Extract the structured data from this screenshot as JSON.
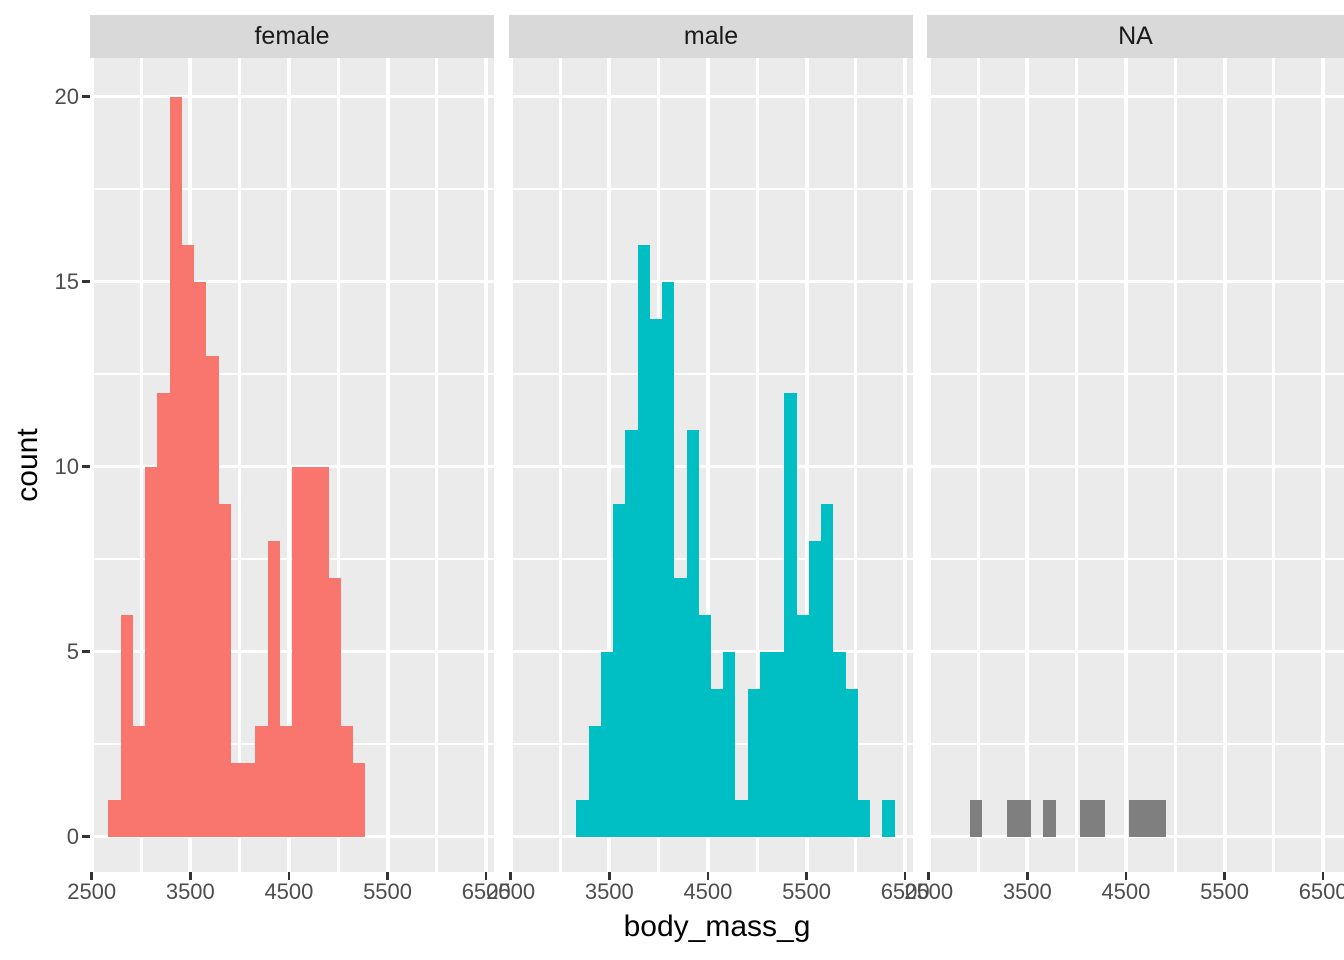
{
  "figure": {
    "x_axis_title": "body_mass_g",
    "y_axis_title": "count",
    "x_tick_labels": [
      "2500",
      "3500",
      "4500",
      "5500",
      "6500"
    ],
    "y_tick_labels": [
      "0",
      "5",
      "10",
      "15",
      "20"
    ],
    "panel_background": "#EBEBEB",
    "strip_background": "#D9D9D9",
    "grid_color": "#FFFFFF",
    "tick_mark_color": "#333333",
    "tick_label_color": "#4D4D4D",
    "axis_title_color": "#000000"
  },
  "chart_data": {
    "type": "bar",
    "subtype": "faceted-histogram",
    "title": "",
    "xlabel": "body_mass_g",
    "ylabel": "count",
    "x_ticks": [
      2500,
      3500,
      4500,
      5500,
      6500
    ],
    "y_ticks": [
      0,
      5,
      10,
      15,
      20
    ],
    "x_minor_ticks": [
      3000,
      4000,
      5000,
      6000
    ],
    "y_minor_ticks": [
      2.5,
      7.5,
      12.5,
      17.5
    ],
    "xlim": [
      2482.8,
      6579.3
    ],
    "ylim": [
      -1.05,
      21.05
    ],
    "bin_width": 124.1,
    "grid": true,
    "legend_position": "none",
    "facets": [
      {
        "label": "female",
        "fill": "#F8766D",
        "bins": [
          [
            2669.0,
            2793.1,
            1
          ],
          [
            2793.1,
            2917.2,
            6
          ],
          [
            2917.2,
            3041.4,
            3
          ],
          [
            3041.4,
            3165.5,
            10
          ],
          [
            3165.5,
            3289.7,
            12
          ],
          [
            3289.7,
            3413.8,
            20
          ],
          [
            3413.8,
            3537.9,
            16
          ],
          [
            3537.9,
            3662.1,
            15
          ],
          [
            3662.1,
            3786.2,
            13
          ],
          [
            3786.2,
            3910.3,
            9
          ],
          [
            3910.3,
            4034.5,
            2
          ],
          [
            4034.5,
            4158.6,
            2
          ],
          [
            4158.6,
            4282.8,
            3
          ],
          [
            4282.8,
            4406.9,
            8
          ],
          [
            4406.9,
            4531.0,
            3
          ],
          [
            4531.0,
            4655.2,
            10
          ],
          [
            4655.2,
            4779.3,
            10
          ],
          [
            4779.3,
            4903.4,
            10
          ],
          [
            4903.4,
            5027.6,
            7
          ],
          [
            5027.6,
            5151.7,
            3
          ],
          [
            5151.7,
            5275.9,
            2
          ]
        ]
      },
      {
        "label": "male",
        "fill": "#00BFC4",
        "bins": [
          [
            3165.5,
            3289.7,
            1
          ],
          [
            3289.7,
            3413.8,
            3
          ],
          [
            3413.8,
            3537.9,
            5
          ],
          [
            3537.9,
            3662.1,
            9
          ],
          [
            3662.1,
            3786.2,
            11
          ],
          [
            3786.2,
            3910.3,
            16
          ],
          [
            3910.3,
            4034.5,
            14
          ],
          [
            4034.5,
            4158.6,
            15
          ],
          [
            4158.6,
            4282.8,
            7
          ],
          [
            4282.8,
            4406.9,
            11
          ],
          [
            4406.9,
            4531.0,
            6
          ],
          [
            4531.0,
            4655.2,
            4
          ],
          [
            4655.2,
            4779.3,
            5
          ],
          [
            4779.3,
            4903.4,
            1
          ],
          [
            4903.4,
            5027.6,
            4
          ],
          [
            5027.6,
            5151.7,
            5
          ],
          [
            5151.7,
            5275.9,
            5
          ],
          [
            5275.9,
            5400.0,
            12
          ],
          [
            5400.0,
            5524.1,
            6
          ],
          [
            5524.1,
            5648.3,
            8
          ],
          [
            5648.3,
            5772.4,
            9
          ],
          [
            5772.4,
            5896.6,
            5
          ],
          [
            5896.6,
            6020.7,
            4
          ],
          [
            6020.7,
            6144.8,
            1
          ],
          [
            6269.0,
            6393.1,
            1
          ]
        ]
      },
      {
        "label": "NA",
        "fill": "#7F7F7F",
        "bins": [
          [
            2917.2,
            3041.4,
            1
          ],
          [
            3289.7,
            3413.8,
            1
          ],
          [
            3413.8,
            3537.9,
            1
          ],
          [
            3662.1,
            3786.2,
            1
          ],
          [
            4034.5,
            4158.6,
            1
          ],
          [
            4158.6,
            4282.8,
            1
          ],
          [
            4531.0,
            4655.2,
            1
          ],
          [
            4655.2,
            4779.3,
            1
          ],
          [
            4779.3,
            4903.4,
            1
          ]
        ]
      }
    ]
  }
}
